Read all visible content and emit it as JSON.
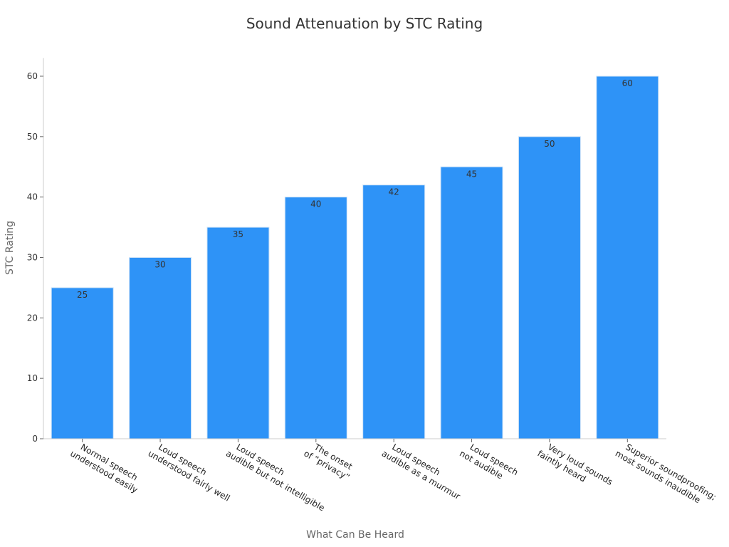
{
  "chart_data": {
    "type": "bar",
    "title": "Sound Attenuation by STC Rating",
    "xlabel": "What Can Be Heard",
    "ylabel": "STC Rating",
    "categories": [
      [
        "Normal speech",
        "understood easily"
      ],
      [
        "Loud speech",
        "understood fairly well"
      ],
      [
        "Loud speech",
        "audible but not intelligible"
      ],
      [
        "The onset",
        "of “privacy”"
      ],
      [
        "Loud speech",
        "audible as a murmur"
      ],
      [
        "Loud speech",
        "not audible"
      ],
      [
        "Very loud sounds",
        "faintly heard"
      ],
      [
        "Superior soundproofing;",
        "most sounds inaudible"
      ]
    ],
    "values": [
      25,
      30,
      35,
      40,
      42,
      45,
      50,
      60
    ],
    "ylim": [
      0,
      63
    ],
    "yticks": [
      0,
      10,
      20,
      30,
      40,
      50,
      60
    ],
    "grid": false,
    "bar_color": "#2e93f7",
    "data_labels": true
  }
}
